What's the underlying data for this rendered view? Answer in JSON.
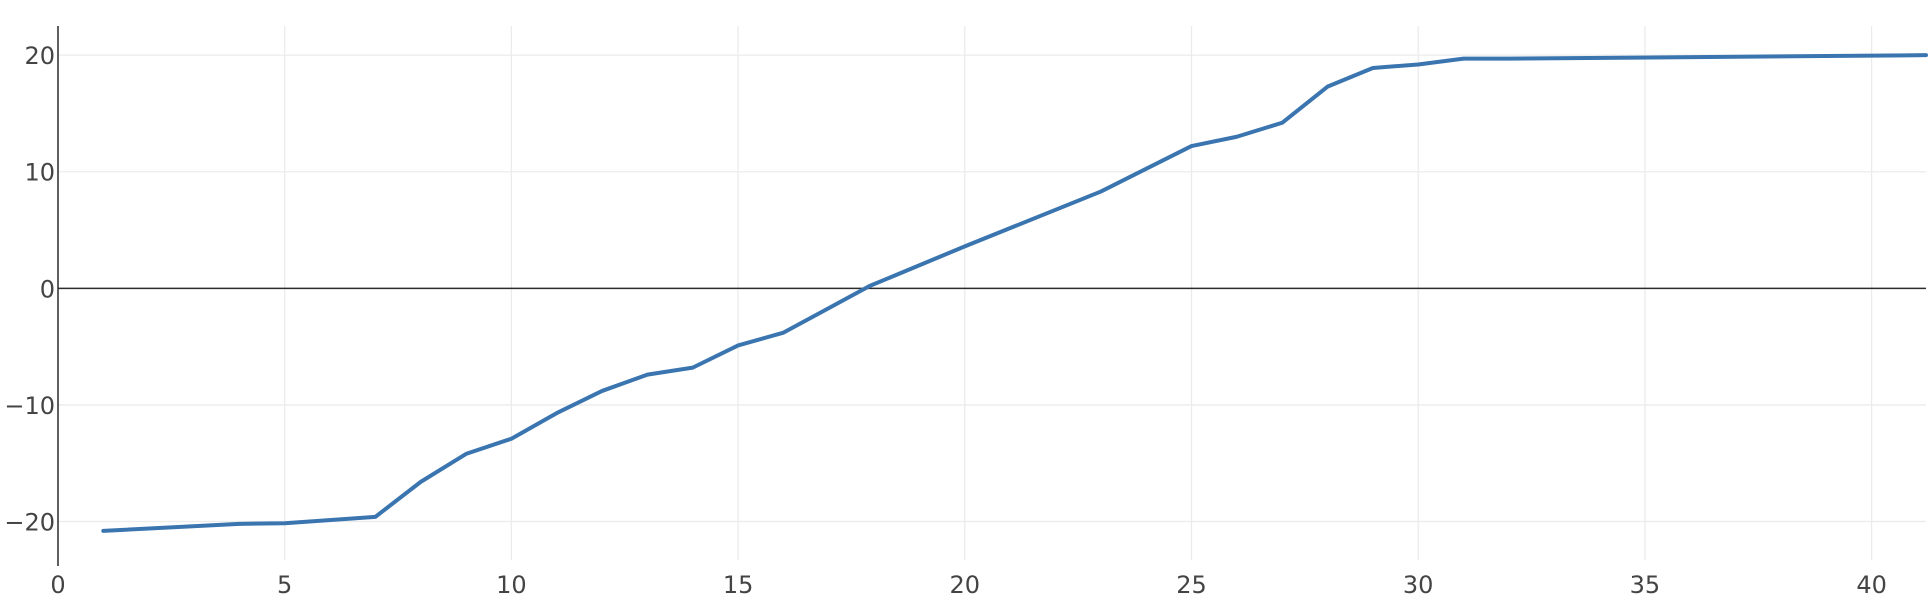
{
  "chart_data": {
    "type": "line",
    "title": "",
    "xlabel": "",
    "ylabel": "",
    "xlim": [
      0,
      41.2
    ],
    "ylim": [
      -23.3,
      22.5
    ],
    "x_ticks": [
      0,
      5,
      10,
      15,
      20,
      25,
      30,
      35,
      40
    ],
    "y_ticks": [
      20,
      10,
      0,
      -10,
      -20
    ],
    "x_tick_labels": [
      "0",
      "5",
      "10",
      "15",
      "20",
      "25",
      "30",
      "35",
      "40"
    ],
    "y_tick_labels": [
      "20",
      "10",
      "0",
      "−10",
      "−20"
    ],
    "grid": true,
    "zero_line": true,
    "legend": "none",
    "series": [
      {
        "color": "#3a75b0",
        "x": [
          1,
          4,
          5,
          7,
          8,
          9,
          10,
          11,
          12,
          13,
          14,
          15,
          16,
          17,
          17.9,
          20,
          23,
          25,
          26,
          27,
          28,
          29,
          30,
          31,
          32,
          41.2
        ],
        "y": [
          -20.8,
          -20.2,
          -20.15,
          -19.6,
          -16.6,
          -14.2,
          -12.9,
          -10.7,
          -8.8,
          -7.4,
          -6.8,
          -4.9,
          -3.8,
          -1.7,
          0.2,
          3.6,
          8.3,
          12.2,
          13.0,
          14.2,
          17.3,
          18.9,
          19.2,
          19.7,
          19.7,
          20.0
        ]
      }
    ]
  }
}
